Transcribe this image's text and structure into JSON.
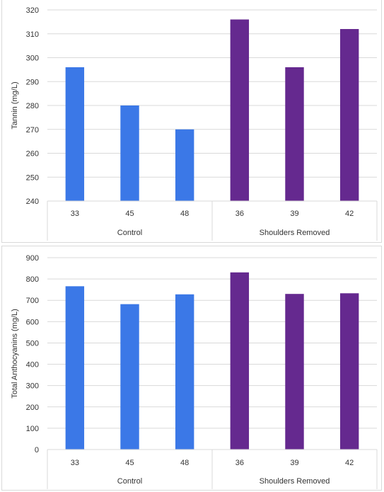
{
  "colors": {
    "control": "#3b78e7",
    "shoulders_removed": "#65298f",
    "grid": "#d9d9d9",
    "text": "#333333"
  },
  "chart_data": [
    {
      "type": "bar",
      "ylabel": "Tannin (mg/L)",
      "ylim": [
        240,
        320
      ],
      "yticks": [
        240,
        250,
        260,
        270,
        280,
        290,
        300,
        310,
        320
      ],
      "grid": true,
      "groups": [
        {
          "name": "Control",
          "categories": [
            "33",
            "45",
            "48"
          ],
          "values": [
            296,
            280,
            270
          ]
        },
        {
          "name": "Shoulders Removed",
          "categories": [
            "36",
            "39",
            "42"
          ],
          "values": [
            316,
            296,
            312
          ]
        }
      ]
    },
    {
      "type": "bar",
      "ylabel": "Total Anthocyanins (mg/L)",
      "ylim": [
        0,
        900
      ],
      "yticks": [
        0,
        100,
        200,
        300,
        400,
        500,
        600,
        700,
        800,
        900
      ],
      "grid": true,
      "groups": [
        {
          "name": "Control",
          "categories": [
            "33",
            "45",
            "48"
          ],
          "values": [
            766,
            682,
            728
          ]
        },
        {
          "name": "Shoulders Removed",
          "categories": [
            "36",
            "39",
            "42"
          ],
          "values": [
            831,
            730,
            733
          ]
        }
      ]
    }
  ]
}
